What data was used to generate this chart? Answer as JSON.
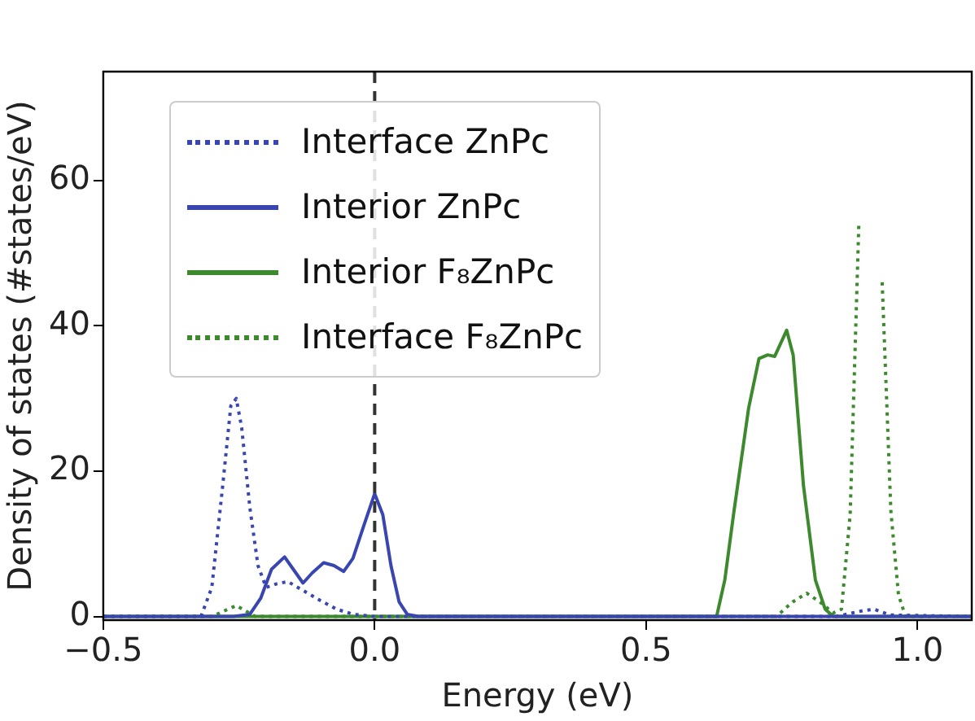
{
  "chart_data": {
    "type": "line",
    "xlabel": "Energy (eV)",
    "ylabel": "Density of states (#states/eV)",
    "xlim": [
      -0.5,
      1.1
    ],
    "ylim": [
      -0.5,
      75
    ],
    "xticks": [
      {
        "value": -0.5,
        "label": "−0.5"
      },
      {
        "value": 0,
        "label": "0.0"
      },
      0.5,
      {
        "value": 1,
        "label": "1.0"
      }
    ],
    "yticks": [
      0,
      20,
      40,
      60
    ],
    "grid": false,
    "legend": "top left",
    "marker": "none",
    "ref_lines": [
      {
        "axis": "x",
        "value": 0,
        "color": "#333333",
        "line_style": "dashed"
      }
    ],
    "series": [
      {
        "name": "Interface ZnPc",
        "color": "#3a46b0",
        "line_style": "dotted",
        "x": [
          -0.5,
          -0.32,
          -0.3,
          -0.28,
          -0.265,
          -0.255,
          -0.245,
          -0.23,
          -0.215,
          -0.2,
          -0.18,
          -0.16,
          -0.13,
          -0.1,
          -0.07,
          -0.04,
          0,
          0.85,
          0.9,
          0.92,
          0.95,
          1.1
        ],
        "values": [
          0,
          0,
          4,
          18,
          29,
          30,
          26,
          15,
          7,
          4,
          4.5,
          4.8,
          3.5,
          2.2,
          1,
          0.3,
          0,
          0,
          0.8,
          1,
          0.2,
          0
        ]
      },
      {
        "name": "Interior ZnPc",
        "color": "#3a46b0",
        "line_style": "solid",
        "x": [
          -0.5,
          -0.26,
          -0.23,
          -0.21,
          -0.19,
          -0.166,
          -0.15,
          -0.132,
          -0.115,
          -0.094,
          -0.075,
          -0.057,
          -0.04,
          -0.02,
          0,
          0.015,
          0.03,
          0.045,
          0.06,
          0.08,
          1.1
        ],
        "values": [
          0,
          0,
          0.3,
          2.5,
          6.5,
          8.2,
          6.5,
          4.6,
          6,
          7.4,
          7,
          6.2,
          8,
          12.5,
          16.9,
          14,
          7,
          2,
          0.3,
          0,
          0
        ]
      },
      {
        "name": "Interior F₈ZnPc",
        "color": "#3d8a2e",
        "line_style": "solid",
        "x": [
          -0.5,
          0.63,
          0.645,
          0.662,
          0.689,
          0.708,
          0.724,
          0.737,
          0.759,
          0.771,
          0.79,
          0.812,
          0.83,
          0.845,
          1.1
        ],
        "values": [
          0,
          0,
          5,
          14.5,
          28.7,
          35.5,
          36,
          35.8,
          39.4,
          36,
          18,
          5,
          1,
          0,
          0
        ]
      },
      {
        "name": "Interface F₈ZnPc",
        "color": "#3d8a2e",
        "line_style": "dotted",
        "x": [
          -0.5,
          -0.3,
          -0.255,
          -0.22,
          0.74,
          0.77,
          0.796,
          0.82,
          0.845,
          0.86,
          0.876,
          0.892,
          0.903,
          0.925,
          0.935,
          0.951,
          0.965,
          0.978,
          1.1
        ],
        "values": [
          0,
          0,
          1.5,
          0,
          0,
          2,
          3.2,
          2,
          0.5,
          1,
          14,
          54,
          null,
          null,
          46,
          14.5,
          3,
          0,
          0
        ]
      }
    ]
  }
}
